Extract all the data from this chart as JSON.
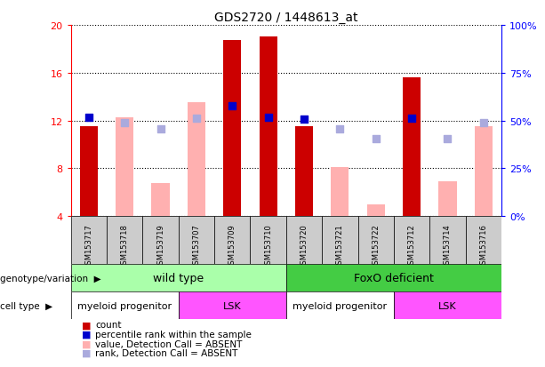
{
  "title": "GDS2720 / 1448613_at",
  "samples": [
    "GSM153717",
    "GSM153718",
    "GSM153719",
    "GSM153707",
    "GSM153709",
    "GSM153710",
    "GSM153720",
    "GSM153721",
    "GSM153722",
    "GSM153712",
    "GSM153714",
    "GSM153716"
  ],
  "ylim": [
    4,
    20
  ],
  "yticks_left": [
    4,
    8,
    12,
    16,
    20
  ],
  "count_bars": [
    11.5,
    null,
    null,
    null,
    18.7,
    19.0,
    11.5,
    null,
    null,
    15.6,
    null,
    null
  ],
  "rank_dots": [
    12.3,
    null,
    null,
    null,
    13.2,
    12.3,
    12.1,
    null,
    null,
    12.2,
    null,
    null
  ],
  "absent_value_bars": [
    null,
    12.3,
    6.8,
    13.5,
    null,
    null,
    null,
    8.1,
    5.0,
    null,
    6.9,
    11.5
  ],
  "absent_rank_dots": [
    null,
    11.8,
    11.3,
    12.2,
    null,
    null,
    null,
    11.3,
    10.5,
    null,
    10.5,
    11.8
  ],
  "bar_color_count": "#cc0000",
  "bar_color_absent_value": "#ffb0b0",
  "dot_color_rank": "#0000cc",
  "dot_color_absent_rank": "#aaaadd",
  "genotype_wild_label": "wild type",
  "genotype_foxo_label": "FoxO deficient",
  "cell_myeloid_label": "myeloid progenitor",
  "cell_lsk_label": "LSK",
  "genotype_label": "genotype/variation",
  "cell_label": "cell type",
  "wild_type_color": "#aaffaa",
  "foxo_color": "#44cc44",
  "myeloid_color": "#ffffff",
  "lsk_color": "#ff55ff",
  "sample_box_color": "#cccccc",
  "legend_items": [
    "count",
    "percentile rank within the sample",
    "value, Detection Call = ABSENT",
    "rank, Detection Call = ABSENT"
  ],
  "legend_colors": [
    "#cc0000",
    "#0000cc",
    "#ffb0b0",
    "#aaaadd"
  ],
  "right_tick_labels": [
    "0%",
    "25%",
    "50%",
    "75%",
    "100%"
  ]
}
